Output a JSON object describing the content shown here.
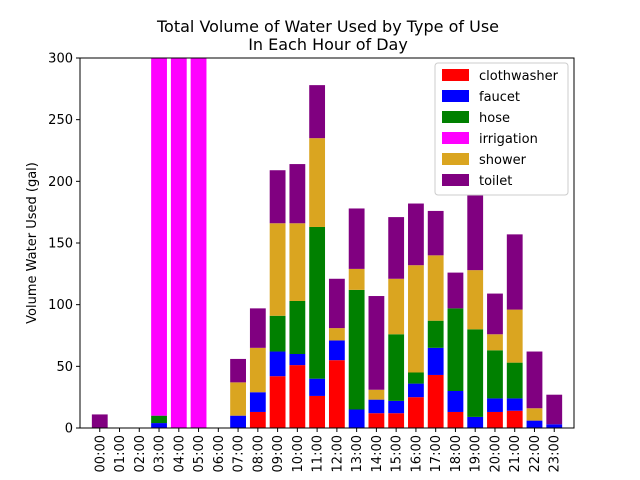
{
  "chart_data": {
    "type": "bar",
    "stacked": true,
    "title": [
      "Total Volume of Water Used by Type of Use",
      "In Each Hour of Day"
    ],
    "xlabel": "",
    "ylabel": "Volume Water Used (gal)",
    "ylim": [
      0,
      300
    ],
    "yticks": [
      0,
      50,
      100,
      150,
      200,
      250,
      300
    ],
    "grid": false,
    "legend_position": "top-right",
    "categories": [
      "00:00",
      "01:00",
      "02:00",
      "03:00",
      "04:00",
      "05:00",
      "06:00",
      "07:00",
      "08:00",
      "09:00",
      "10:00",
      "11:00",
      "12:00",
      "13:00",
      "14:00",
      "15:00",
      "16:00",
      "17:00",
      "18:00",
      "19:00",
      "20:00",
      "21:00",
      "22:00",
      "23:00"
    ],
    "series": [
      {
        "name": "clothwasher",
        "color": "#ff0000",
        "values": [
          0,
          0,
          0,
          0,
          0,
          0,
          0,
          0,
          13,
          42,
          51,
          26,
          55,
          0,
          12,
          12,
          25,
          43,
          13,
          0,
          13,
          14,
          0,
          0
        ]
      },
      {
        "name": "faucet",
        "color": "#0000ff",
        "values": [
          0,
          0,
          0,
          4,
          0,
          0,
          0,
          10,
          16,
          20,
          9,
          14,
          16,
          15,
          11,
          10,
          11,
          22,
          17,
          9,
          11,
          10,
          6,
          3
        ]
      },
      {
        "name": "hose",
        "color": "#008000",
        "values": [
          0,
          0,
          0,
          6,
          0,
          0,
          0,
          0,
          0,
          29,
          43,
          123,
          0,
          97,
          0,
          54,
          9,
          22,
          67,
          71,
          39,
          29,
          0,
          0
        ]
      },
      {
        "name": "irrigation",
        "color": "#ff00ff",
        "values": [
          0,
          0,
          0,
          290,
          300,
          300,
          0,
          0,
          0,
          0,
          0,
          0,
          0,
          0,
          0,
          0,
          0,
          0,
          0,
          0,
          0,
          0,
          0,
          0
        ]
      },
      {
        "name": "shower",
        "color": "#daa520",
        "values": [
          0,
          0,
          0,
          0,
          0,
          0,
          0,
          27,
          36,
          75,
          63,
          72,
          10,
          17,
          8,
          45,
          87,
          53,
          0,
          48,
          13,
          43,
          10,
          0
        ]
      },
      {
        "name": "toilet",
        "color": "#800080",
        "values": [
          11,
          0,
          0,
          0,
          0,
          0,
          0,
          19,
          32,
          43,
          48,
          43,
          40,
          49,
          76,
          50,
          50,
          36,
          29,
          62,
          33,
          61,
          46,
          24
        ]
      }
    ]
  }
}
